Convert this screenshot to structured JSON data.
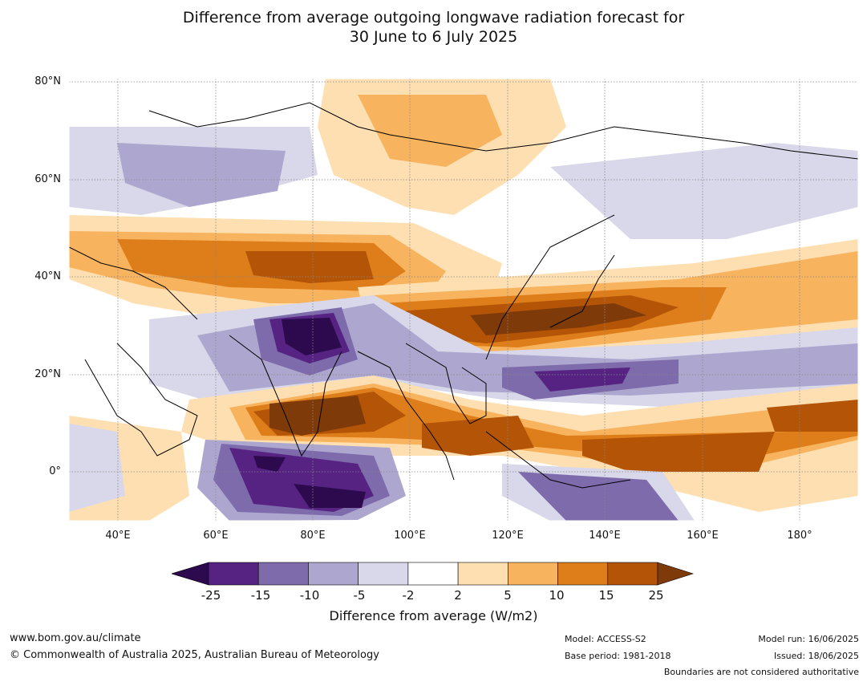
{
  "title_line1": "Difference from average outgoing longwave radiation forecast for",
  "title_line2": "30 June to 6 July 2025",
  "lat_labels": [
    "80°N",
    "60°N",
    "40°N",
    "20°N",
    "0°"
  ],
  "lon_labels": [
    "40°E",
    "60°E",
    "80°E",
    "100°E",
    "120°E",
    "140°E",
    "160°E",
    "180°"
  ],
  "colorbar": {
    "ticks": [
      "-25",
      "-15",
      "-10",
      "-5",
      "-2",
      "2",
      "5",
      "10",
      "15",
      "25"
    ],
    "colors": [
      "#2d0a4e",
      "#562383",
      "#7d6bab",
      "#ada7cf",
      "#d8d8ea",
      "#ffffff",
      "#fedfb1",
      "#f8b35e",
      "#dd7e1a",
      "#b35406",
      "#7f3a0a"
    ],
    "label": "Difference from average (W/m2)"
  },
  "footer": {
    "website": "www.bom.gov.au/climate",
    "copyright": "© Commonwealth of Australia 2025, Australian Bureau of Meteorology",
    "model": "Model: ACCESS-S2",
    "base_period": "Base period: 1981-2018",
    "model_run": "Model run: 16/06/2025",
    "issued": "Issued: 18/06/2025",
    "disclaimer": "Boundaries are not considered authoritative"
  }
}
